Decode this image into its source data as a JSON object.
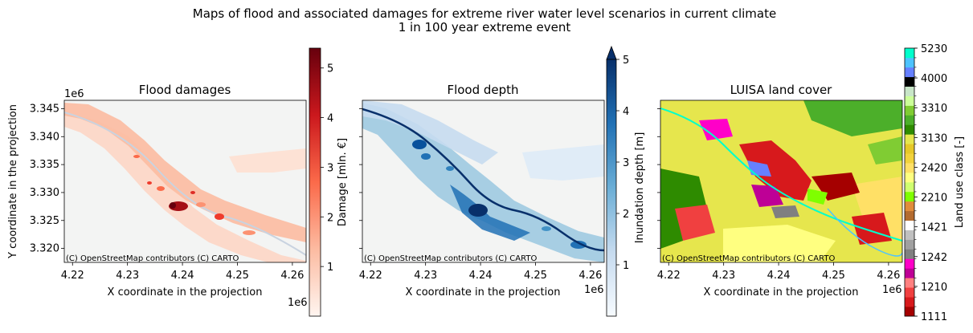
{
  "figure": {
    "title": "Maps of flood and associated damages for extreme river water level scenarios in current climate",
    "subtitle": "1 in 100 year extreme event"
  },
  "attribution": "(C) OpenStreetMap contributors (C) CARTO",
  "chart_data": [
    {
      "type": "heatmap",
      "title": "Flood damages",
      "xlabel": "X coordinate in the projection",
      "ylabel": "Y coordinate in the projection",
      "x_offset_label": "1e6",
      "y_offset_label": "1e6",
      "xticks": [
        "4.22",
        "4.23",
        "4.24",
        "4.25",
        "4.26"
      ],
      "yticks": [
        "3.345",
        "3.340",
        "3.335",
        "3.330",
        "3.325",
        "3.320"
      ],
      "xlim": [
        4.2185,
        4.2625
      ],
      "ylim": [
        3.3175,
        3.3465
      ],
      "colorbar": {
        "label": "Damage [mln. €]",
        "ticks": [
          "1",
          "2",
          "3",
          "4",
          "5"
        ],
        "range": [
          0,
          5.4
        ],
        "colormap": "Reds",
        "colors": [
          "#fff5f0",
          "#fcbba1",
          "#fb6a4a",
          "#cb181d",
          "#67000d"
        ]
      }
    },
    {
      "type": "heatmap",
      "title": "Flood depth",
      "xlabel": "X coordinate in the projection",
      "x_offset_label": "1e6",
      "xticks": [
        "4.22",
        "4.23",
        "4.24",
        "4.25",
        "4.26"
      ],
      "xlim": [
        4.2185,
        4.2625
      ],
      "ylim": [
        3.3175,
        3.3465
      ],
      "colorbar": {
        "label": "Inundation depth [m]",
        "ticks": [
          "1",
          "2",
          "3",
          "4",
          "5"
        ],
        "range": [
          0,
          5
        ],
        "extend": "max",
        "colormap": "Blues",
        "colors": [
          "#f7fbff",
          "#c6dbef",
          "#6baed6",
          "#2171b5",
          "#08306b"
        ]
      }
    },
    {
      "type": "heatmap",
      "title": "LUISA land cover",
      "xlabel": "X coordinate in the projection",
      "x_offset_label": "1e6",
      "xticks": [
        "4.22",
        "4.23",
        "4.24",
        "4.25",
        "4.26"
      ],
      "xlim": [
        4.2185,
        4.2625
      ],
      "ylim": [
        3.3175,
        3.3465
      ],
      "colorbar": {
        "label": "Land use class [-]",
        "tick_labels": [
          "1111",
          "1210",
          "1242",
          "1421",
          "2210",
          "2420",
          "3130",
          "3310",
          "4000",
          "5230"
        ],
        "bins": 28,
        "colors": [
          "#a50000",
          "#d7191c",
          "#f04040",
          "#ff8080",
          "#be0096",
          "#ff00c8",
          "#808080",
          "#a0a0a0",
          "#c0c0c0",
          "#ffffff",
          "#b36b2f",
          "#e08c3c",
          "#7fff00",
          "#d0ff70",
          "#ffff80",
          "#ffe066",
          "#f2d23c",
          "#e6c828",
          "#e6e64d",
          "#2e8b00",
          "#4caf2a",
          "#80cc33",
          "#ccff99",
          "#c8e6c8",
          "#000000",
          "#6680ff",
          "#4dc3ff",
          "#00ffcc"
        ]
      }
    }
  ]
}
